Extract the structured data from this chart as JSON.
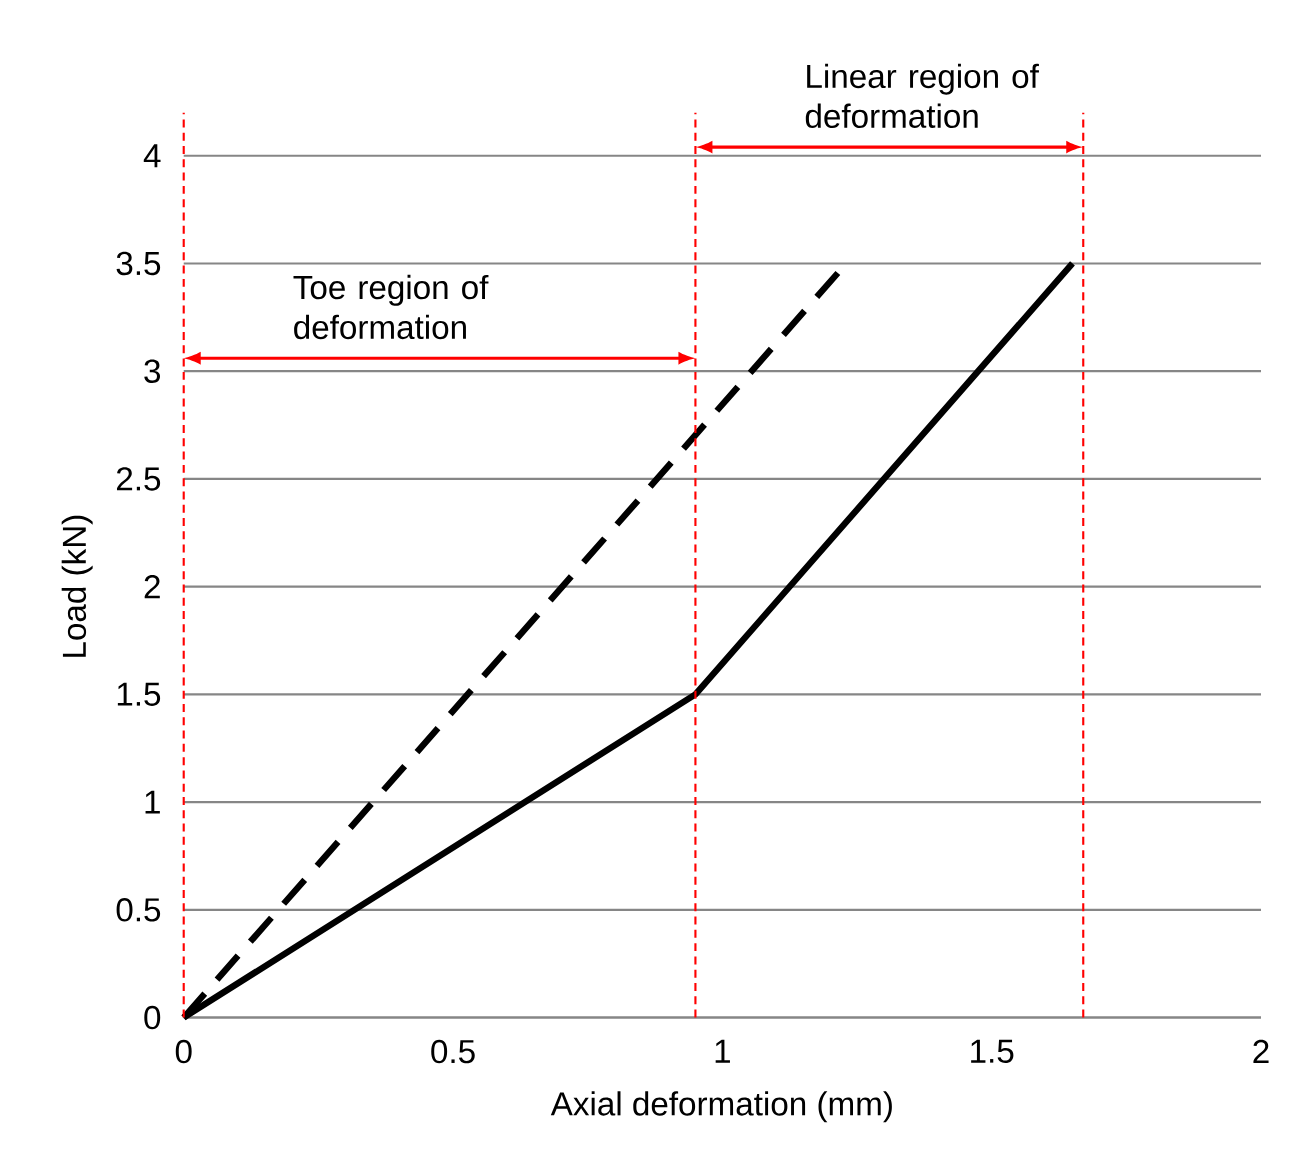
{
  "chart_data": {
    "type": "line",
    "xlabel": "Axial deformation (mm)",
    "ylabel": "Load (kN)",
    "xlim": [
      0,
      2
    ],
    "ylim": [
      0,
      4
    ],
    "xticks": [
      0,
      0.5,
      1,
      1.5,
      2
    ],
    "yticks": [
      0,
      0.5,
      1,
      1.5,
      2,
      2.5,
      3,
      3.5,
      4
    ],
    "grid": "y",
    "series": [
      {
        "color": "#000000",
        "line_style": "solid",
        "x": [
          0,
          0.95,
          1.65
        ],
        "values": [
          0,
          1.5,
          3.5
        ]
      },
      {
        "color": "#000000",
        "line_style": "dashed",
        "x": [
          0,
          1.23
        ],
        "values": [
          0,
          3.5
        ]
      }
    ],
    "ref_lines": [
      {
        "axis": "x",
        "value": 0,
        "color": "#ff0000",
        "line_style": "dashed"
      },
      {
        "axis": "x",
        "value": 0.95,
        "color": "#ff0000",
        "line_style": "dashed"
      },
      {
        "axis": "x",
        "value": 1.67,
        "color": "#ff0000",
        "line_style": "dashed"
      }
    ],
    "annotations": [
      "Toe region of deformation",
      "Linear region of deformation"
    ]
  }
}
